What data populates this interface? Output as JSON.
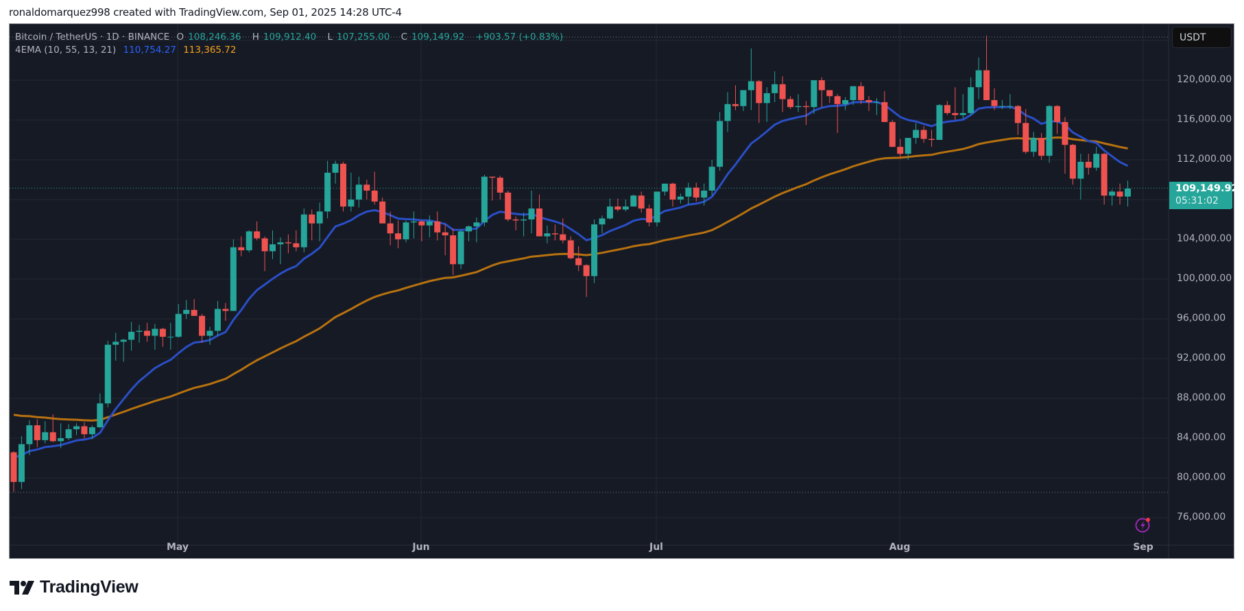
{
  "credit": "ronaldomarquez998 created with TradingView.com, Sep 01, 2025 14:28 UTC-4",
  "legend": {
    "symbol": "Bitcoin / TetherUS · 1D · BINANCE",
    "o_label": "O",
    "o": "108,246.36",
    "h_label": "H",
    "h": "109,912.40",
    "l_label": "L",
    "l": "107,255.00",
    "c_label": "C",
    "c": "109,149.92",
    "change": "+903.57 (+0.83%)",
    "indicator": "4EMA (10, 55, 13, 21)",
    "ema_fast": "110,754.27",
    "ema_slow": "113,365.72"
  },
  "currency_button": "USDT",
  "price_label": {
    "price": "109,149.92",
    "countdown": "05:31:02"
  },
  "colors": {
    "up": "#26a69a",
    "down": "#ef5350",
    "ema_fast": "#2a4fc7",
    "ema_slow": "#b8720f",
    "background": "#161a25",
    "grid": "#242833"
  },
  "y_axis": [
    "120,000.00",
    "116,000.00",
    "112,000.00",
    "104,000.00",
    "100,000.00",
    "96,000.00",
    "92,000.00",
    "88,000.00",
    "84,000.00",
    "80,000.00",
    "76,000.00"
  ],
  "x_axis": [
    "May",
    "Jun",
    "Jul",
    "Aug",
    "Sep"
  ],
  "brand": "TradingView",
  "chart_data": {
    "type": "candlestick",
    "title": "Bitcoin / TetherUS · 1D · BINANCE",
    "xlabel": "",
    "ylabel": "USDT",
    "ylim": [
      74000,
      126000
    ],
    "x_ticks": [
      "May",
      "Jun",
      "Jul",
      "Aug",
      "Sep"
    ],
    "y_ticks": [
      76000,
      80000,
      84000,
      88000,
      92000,
      96000,
      100000,
      104000,
      108000,
      112000,
      116000,
      120000
    ],
    "start_date": "2025-04-10",
    "ohlc": [
      [
        82580,
        82700,
        78600,
        79600
      ],
      [
        79600,
        84200,
        78900,
        83400
      ],
      [
        83400,
        85800,
        82300,
        85300
      ],
      [
        85300,
        85900,
        83100,
        83800
      ],
      [
        83800,
        85700,
        83500,
        84600
      ],
      [
        84600,
        86400,
        83600,
        83700
      ],
      [
        83700,
        85500,
        83000,
        84000
      ],
      [
        84000,
        85400,
        83800,
        84900
      ],
      [
        84900,
        85500,
        84300,
        85200
      ],
      [
        85200,
        85600,
        84000,
        84400
      ],
      [
        84400,
        85300,
        83900,
        85100
      ],
      [
        85100,
        88500,
        85000,
        87500
      ],
      [
        87500,
        93800,
        87100,
        93400
      ],
      [
        93400,
        94600,
        91800,
        93700
      ],
      [
        93700,
        94000,
        91700,
        93900
      ],
      [
        93900,
        95700,
        92800,
        94700
      ],
      [
        94700,
        95400,
        93600,
        94800
      ],
      [
        94800,
        95600,
        93700,
        94300
      ],
      [
        94300,
        95500,
        92900,
        95000
      ],
      [
        95000,
        95100,
        93200,
        94200
      ],
      [
        94200,
        95600,
        92900,
        94200
      ],
      [
        94200,
        97500,
        94100,
        96500
      ],
      [
        96500,
        97900,
        96000,
        96900
      ],
      [
        96900,
        98000,
        96300,
        96300
      ],
      [
        96300,
        96500,
        93600,
        94300
      ],
      [
        94300,
        95200,
        93400,
        94800
      ],
      [
        94800,
        97800,
        94300,
        97000
      ],
      [
        97000,
        97600,
        95800,
        96800
      ],
      [
        96800,
        104000,
        96800,
        103200
      ],
      [
        103200,
        104300,
        102300,
        102900
      ],
      [
        102900,
        104900,
        102700,
        104800
      ],
      [
        104800,
        105800,
        103900,
        104100
      ],
      [
        104100,
        104300,
        100800,
        102800
      ],
      [
        102800,
        104900,
        102000,
        103500
      ],
      [
        103500,
        104200,
        101500,
        103700
      ],
      [
        103700,
        104500,
        102600,
        103600
      ],
      [
        103600,
        104900,
        102800,
        103200
      ],
      [
        103200,
        107100,
        102700,
        106500
      ],
      [
        106500,
        107000,
        103900,
        105600
      ],
      [
        105600,
        107700,
        103800,
        106800
      ],
      [
        106800,
        111900,
        106100,
        110700
      ],
      [
        110700,
        111900,
        109600,
        111600
      ],
      [
        111600,
        111800,
        106800,
        107300
      ],
      [
        107300,
        110700,
        106800,
        108000
      ],
      [
        108000,
        110300,
        107200,
        109500
      ],
      [
        109500,
        110000,
        108000,
        108900
      ],
      [
        108900,
        110800,
        107500,
        107800
      ],
      [
        107800,
        108200,
        105800,
        105600
      ],
      [
        105600,
        106800,
        103400,
        104600
      ],
      [
        104600,
        105900,
        103100,
        104000
      ],
      [
        104000,
        105900,
        103700,
        105700
      ],
      [
        105700,
        106800,
        104100,
        105800
      ],
      [
        105800,
        105900,
        103800,
        105400
      ],
      [
        105400,
        106400,
        104200,
        105800
      ],
      [
        105800,
        106800,
        103900,
        104700
      ],
      [
        104700,
        105500,
        102400,
        104400
      ],
      [
        104400,
        105100,
        100400,
        101500
      ],
      [
        101500,
        105000,
        101000,
        104800
      ],
      [
        104800,
        105400,
        103800,
        105300
      ],
      [
        105300,
        106200,
        103700,
        105700
      ],
      [
        105700,
        110500,
        105300,
        110300
      ],
      [
        110300,
        110300,
        107900,
        110200
      ],
      [
        110200,
        110400,
        108000,
        108700
      ],
      [
        108700,
        108900,
        105800,
        106000
      ],
      [
        106000,
        106300,
        104900,
        105900
      ],
      [
        105900,
        106700,
        104300,
        106000
      ],
      [
        106000,
        108900,
        104600,
        107100
      ],
      [
        107100,
        108500,
        104500,
        104300
      ],
      [
        104300,
        105400,
        103600,
        104600
      ],
      [
        104600,
        105500,
        103900,
        104500
      ],
      [
        104500,
        106100,
        103600,
        103900
      ],
      [
        103900,
        104300,
        102000,
        102100
      ],
      [
        102100,
        103300,
        100800,
        101400
      ],
      [
        101400,
        101500,
        98200,
        100300
      ],
      [
        100300,
        106000,
        99600,
        105500
      ],
      [
        105500,
        106400,
        104600,
        106100
      ],
      [
        106100,
        108100,
        106000,
        107300
      ],
      [
        107300,
        108100,
        106800,
        107000
      ],
      [
        107000,
        108000,
        106800,
        107300
      ],
      [
        107300,
        108500,
        107300,
        108400
      ],
      [
        108400,
        108800,
        106700,
        107100
      ],
      [
        107100,
        107500,
        105300,
        105700
      ],
      [
        105700,
        108300,
        105300,
        108800
      ],
      [
        108800,
        109600,
        108400,
        109600
      ],
      [
        109600,
        109700,
        107300,
        108000
      ],
      [
        108000,
        108600,
        107600,
        108300
      ],
      [
        108300,
        109700,
        107500,
        109200
      ],
      [
        109200,
        109700,
        107800,
        108200
      ],
      [
        108200,
        109600,
        107400,
        108900
      ],
      [
        108900,
        112000,
        108400,
        111300
      ],
      [
        111300,
        116800,
        110900,
        115900
      ],
      [
        115900,
        118800,
        114800,
        117600
      ],
      [
        117600,
        119500,
        117000,
        117400
      ],
      [
        117400,
        118000,
        116900,
        119000
      ],
      [
        119000,
        123200,
        117000,
        119900
      ],
      [
        119900,
        120000,
        115700,
        117700
      ],
      [
        117700,
        119300,
        115800,
        118700
      ],
      [
        118700,
        120900,
        117800,
        119600
      ],
      [
        119600,
        120400,
        116800,
        118100
      ],
      [
        118100,
        118400,
        117100,
        117300
      ],
      [
        117300,
        118600,
        116800,
        117400
      ],
      [
        117400,
        117900,
        115500,
        117300
      ],
      [
        117300,
        118900,
        116600,
        120000
      ],
      [
        120000,
        120300,
        117300,
        119000
      ],
      [
        119000,
        119000,
        117700,
        118400
      ],
      [
        118400,
        118600,
        114700,
        117600
      ],
      [
        117600,
        118300,
        117000,
        118000
      ],
      [
        118000,
        119300,
        117500,
        119400
      ],
      [
        119400,
        119800,
        117600,
        118000
      ],
      [
        118000,
        118400,
        116900,
        117800
      ],
      [
        117800,
        118200,
        116500,
        117800
      ],
      [
        117800,
        118900,
        115900,
        115800
      ],
      [
        115800,
        116000,
        113700,
        113300
      ],
      [
        113300,
        114100,
        112200,
        112600
      ],
      [
        112600,
        114200,
        112000,
        114200
      ],
      [
        114200,
        115700,
        113600,
        115000
      ],
      [
        115000,
        115400,
        113700,
        114100
      ],
      [
        114100,
        115000,
        113300,
        114000
      ],
      [
        114000,
        117600,
        114000,
        117500
      ],
      [
        117500,
        117900,
        116500,
        116700
      ],
      [
        116700,
        119300,
        116000,
        116500
      ],
      [
        116500,
        118600,
        116100,
        116700
      ],
      [
        116700,
        120300,
        116500,
        119300
      ],
      [
        119300,
        122300,
        118100,
        121000
      ],
      [
        121000,
        124500,
        118500,
        118000
      ],
      [
        118000,
        119200,
        117000,
        117400
      ],
      [
        117400,
        118000,
        117100,
        117400
      ],
      [
        117400,
        118600,
        117100,
        117400
      ],
      [
        117400,
        117500,
        114500,
        115700
      ],
      [
        115700,
        117100,
        112600,
        112800
      ],
      [
        112800,
        114800,
        112300,
        114200
      ],
      [
        114200,
        114700,
        112000,
        112400
      ],
      [
        112400,
        117500,
        111700,
        117400
      ],
      [
        117400,
        117500,
        114600,
        115800
      ],
      [
        115800,
        116300,
        110600,
        113500
      ],
      [
        113500,
        113600,
        109500,
        110100
      ],
      [
        110100,
        112600,
        108000,
        111800
      ],
      [
        111800,
        112600,
        110500,
        111200
      ],
      [
        111200,
        113300,
        110900,
        112600
      ],
      [
        112600,
        112700,
        107500,
        108400
      ],
      [
        108400,
        109000,
        107400,
        108800
      ],
      [
        108800,
        109600,
        107500,
        108300
      ],
      [
        108300,
        109900,
        107300,
        109100
      ]
    ],
    "ema_fast_last": 110754.27,
    "ema_slow_last": 113365.72,
    "series": [
      {
        "name": "EMA fast",
        "color": "#2a4fc7"
      },
      {
        "name": "EMA slow",
        "color": "#b8720f"
      }
    ],
    "last_price": 109149.92,
    "high_marker": 124474,
    "low_marker": 78600
  }
}
